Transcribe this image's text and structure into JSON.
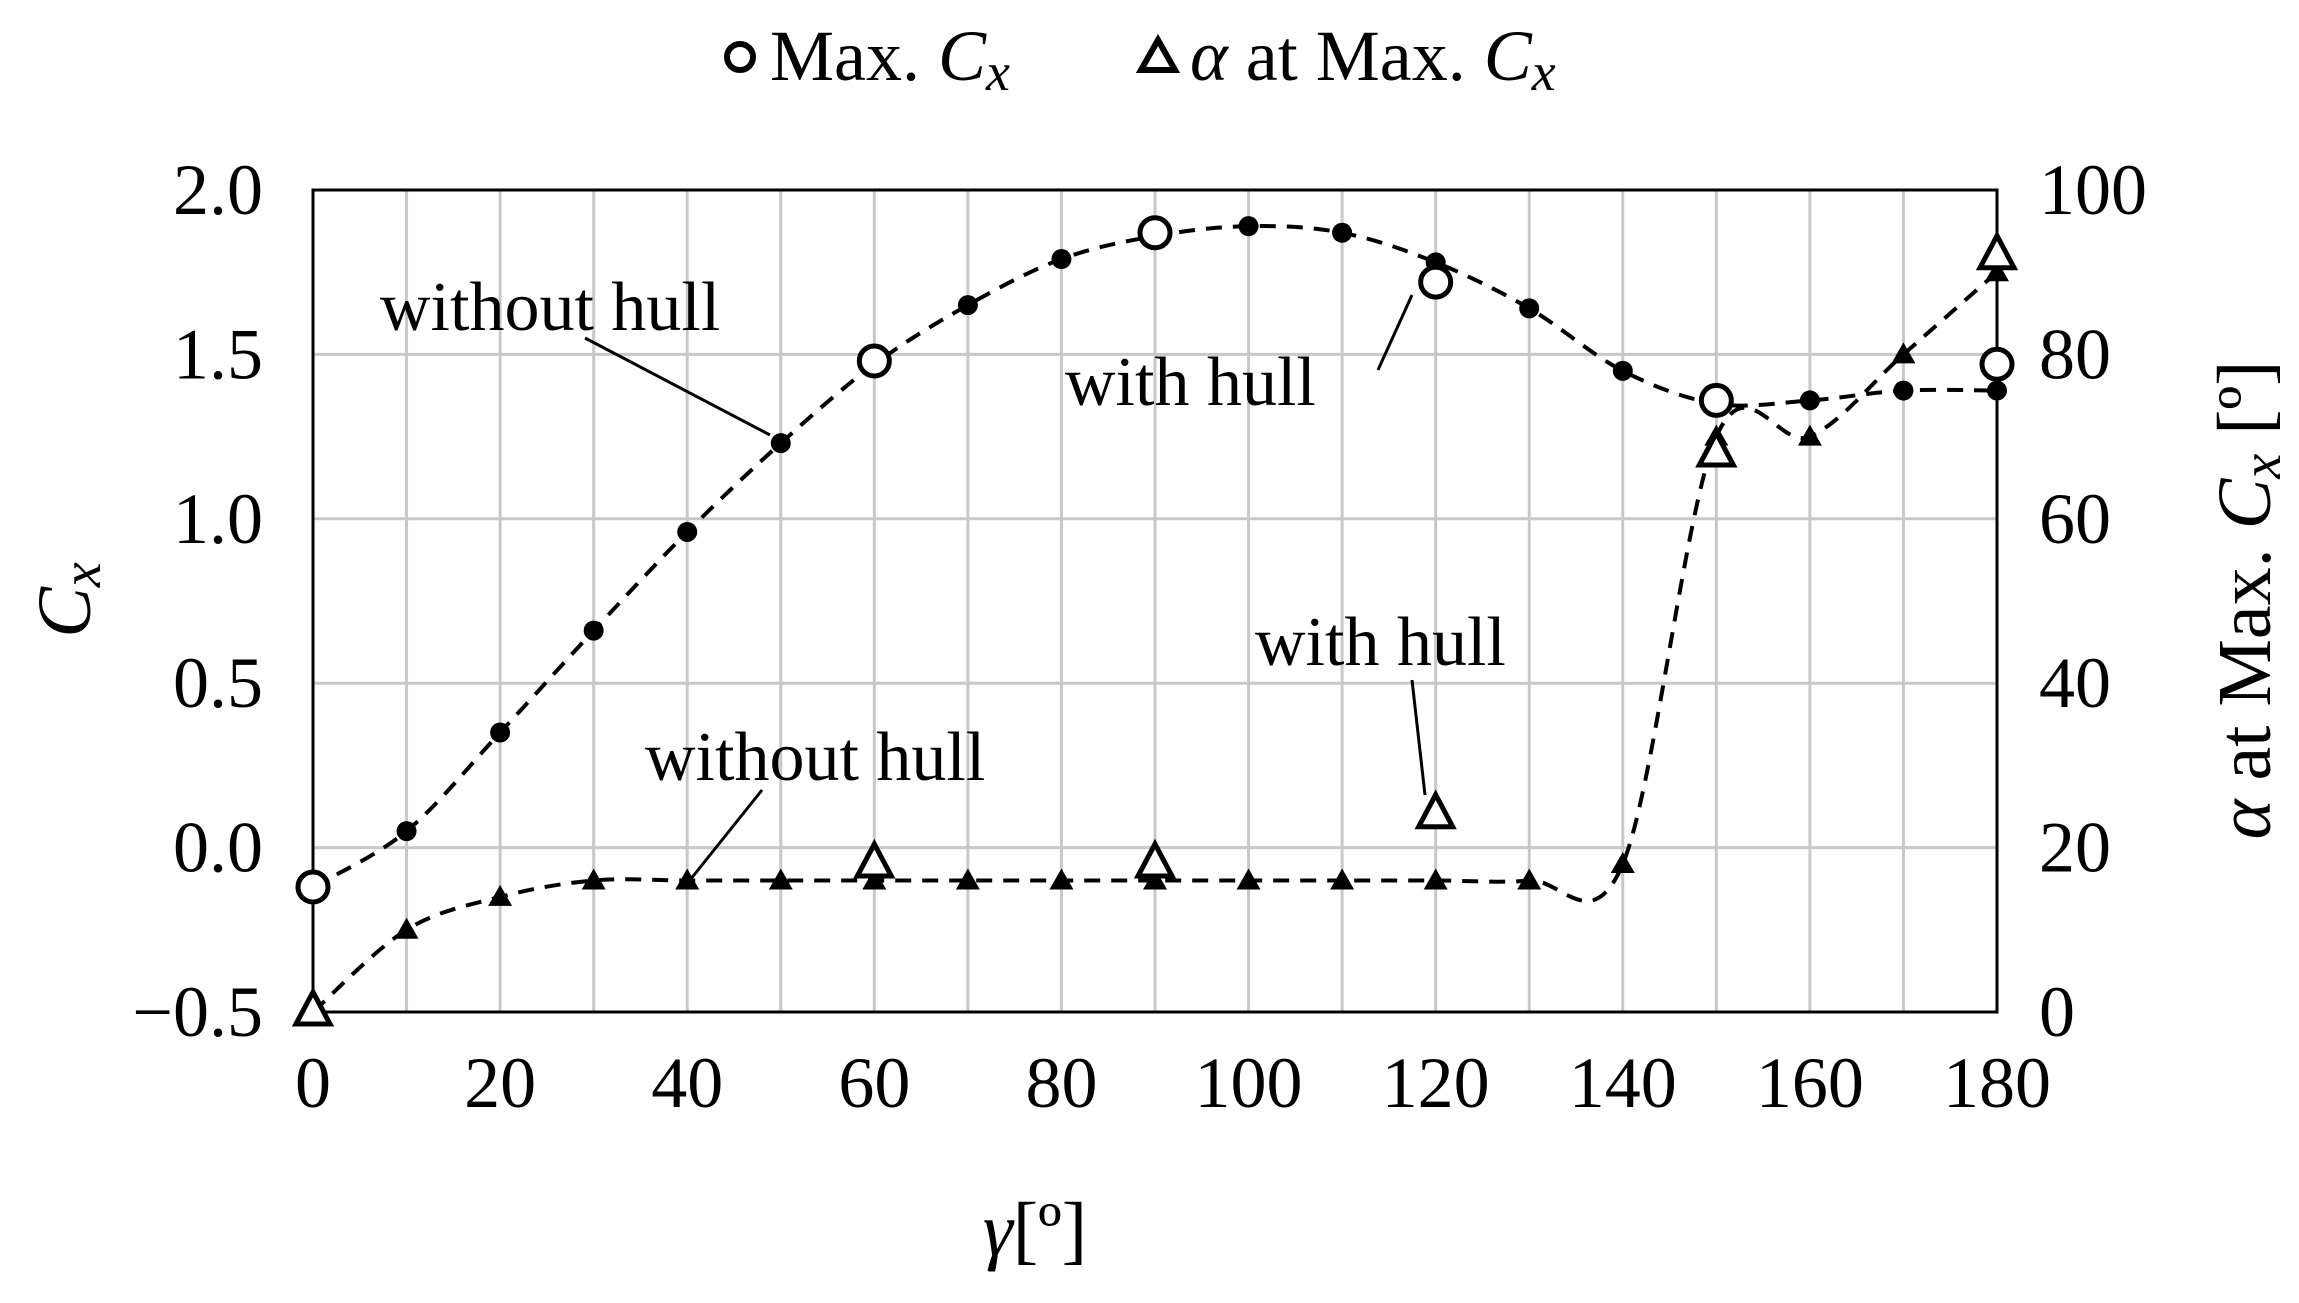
{
  "chart_data": {
    "type": "line",
    "x_axis": {
      "label_symbol": "γ",
      "label_unit": "[º]",
      "range": [
        0,
        180
      ],
      "ticks": [
        "0",
        "20",
        "40",
        "60",
        "80",
        "100",
        "120",
        "140",
        "160",
        "180"
      ]
    },
    "y_left": {
      "label_symbol": "C",
      "label_sub": "x",
      "range": [
        -0.5,
        2.0
      ],
      "ticks": [
        "−0.5",
        "0.0",
        "0.5",
        "1.0",
        "1.5",
        "2.0"
      ]
    },
    "y_right": {
      "label_symbol": "α",
      "label_text": " at Max. ",
      "label_C": "C",
      "label_sub": "x",
      "label_unit": " [º]",
      "range": [
        0,
        100
      ],
      "ticks": [
        "0",
        "20",
        "40",
        "60",
        "80",
        "100"
      ]
    },
    "grid": true,
    "legend": {
      "placement": "top-center",
      "items": [
        {
          "marker": "circle",
          "pre": "Max. ",
          "C": "C",
          "sub": "x"
        },
        {
          "marker": "triangle",
          "sym": "α",
          "pre": " at Max. ",
          "C": "C",
          "sub": "x"
        }
      ]
    },
    "annotations": [
      {
        "text": "without hull",
        "target": "cx_without_hull"
      },
      {
        "text": "with hull",
        "target": "cx_with_hull"
      },
      {
        "text": "with hull",
        "target": "alpha_with_hull"
      },
      {
        "text": "without hull",
        "target": "alpha_without_hull"
      }
    ],
    "series": [
      {
        "id": "cx_without_hull",
        "axis": "left",
        "marker": "dot",
        "line": "dashed",
        "x": [
          0,
          10,
          20,
          30,
          40,
          50,
          60,
          70,
          80,
          90,
          100,
          110,
          120,
          130,
          140,
          150,
          160,
          170,
          180
        ],
        "y": [
          -0.12,
          0.05,
          0.35,
          0.66,
          0.96,
          1.23,
          1.47,
          1.65,
          1.79,
          1.86,
          1.89,
          1.87,
          1.78,
          1.64,
          1.45,
          1.35,
          1.36,
          1.39,
          1.39
        ]
      },
      {
        "id": "cx_with_hull",
        "axis": "left",
        "marker": "open-circle",
        "x": [
          0,
          60,
          90,
          120,
          150,
          180
        ],
        "y": [
          -0.12,
          1.48,
          1.87,
          1.72,
          1.36,
          1.47
        ]
      },
      {
        "id": "alpha_without_hull",
        "axis": "right",
        "marker": "filled-triangle",
        "line": "dashed",
        "x": [
          0,
          10,
          20,
          30,
          40,
          50,
          60,
          70,
          80,
          90,
          100,
          110,
          120,
          130,
          140,
          150,
          160,
          170,
          180
        ],
        "y": [
          0,
          10,
          14,
          16,
          16,
          16,
          16,
          16,
          16,
          16,
          16,
          16,
          16,
          16,
          18,
          70,
          70,
          80,
          90
        ]
      },
      {
        "id": "alpha_with_hull",
        "axis": "right",
        "marker": "open-triangle",
        "x": [
          0,
          60,
          90,
          120,
          150,
          180
        ],
        "y": [
          0,
          18,
          18,
          24,
          68,
          92
        ]
      }
    ]
  }
}
